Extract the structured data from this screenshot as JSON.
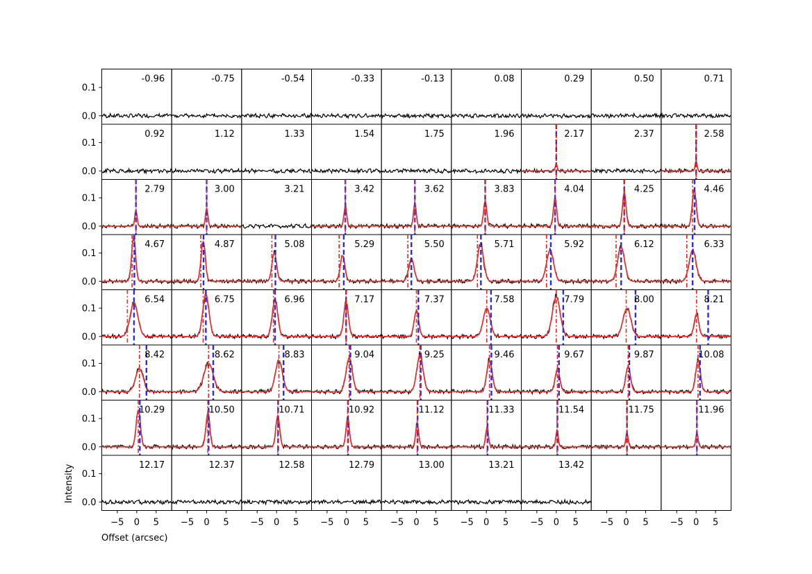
{
  "chart_data": {
    "type": "line",
    "grid": {
      "rows": 8,
      "cols": 9
    },
    "xlabel": "Offset (arcsec)",
    "ylabel": "Intensity",
    "xlim": [
      -9,
      9
    ],
    "ylim": [
      -0.03,
      0.165
    ],
    "xticks": [
      -5,
      0,
      5
    ],
    "xtick_labels": [
      "−5",
      "0",
      "5"
    ],
    "yticks": [
      0.0,
      0.1
    ],
    "ytick_labels": [
      "0.0",
      "0.1"
    ],
    "colors": {
      "data": "#000000",
      "fit": "#ff3333",
      "center": "#e8251f",
      "edge": "#2b2bdd"
    },
    "panels": [
      {
        "label": "-0.96"
      },
      {
        "label": "-0.75"
      },
      {
        "label": "-0.54"
      },
      {
        "label": "-0.33"
      },
      {
        "label": "-0.13"
      },
      {
        "label": "0.08"
      },
      {
        "label": "0.29"
      },
      {
        "label": "0.50"
      },
      {
        "label": "0.71"
      },
      {
        "label": "0.92"
      },
      {
        "label": "1.12"
      },
      {
        "label": "1.33"
      },
      {
        "label": "1.54"
      },
      {
        "label": "1.75"
      },
      {
        "label": "1.96"
      },
      {
        "label": "2.17",
        "amp": 0.025,
        "cen": 0.0,
        "sig": 0.25,
        "lines": [
          0.0,
          0.0
        ]
      },
      {
        "label": "2.37"
      },
      {
        "label": "2.58",
        "amp": 0.035,
        "cen": 0.0,
        "sig": 0.25,
        "lines": [
          0.0,
          0.0
        ]
      },
      {
        "label": "2.79",
        "amp": 0.055,
        "cen": -0.2,
        "sig": 0.3,
        "lines": [
          -0.2,
          -0.2
        ]
      },
      {
        "label": "3.00",
        "amp": 0.065,
        "cen": 0.0,
        "sig": 0.3,
        "lines": [
          0.0,
          0.0
        ]
      },
      {
        "label": "3.21"
      },
      {
        "label": "3.42",
        "amp": 0.07,
        "cen": -0.3,
        "sig": 0.35,
        "lines": [
          -0.3,
          -0.3
        ]
      },
      {
        "label": "3.62",
        "amp": 0.08,
        "cen": -0.4,
        "sig": 0.35,
        "lines": [
          -0.4,
          -0.4
        ]
      },
      {
        "label": "3.83",
        "amp": 0.09,
        "cen": -0.3,
        "sig": 0.4,
        "lines": [
          -0.3,
          -0.3
        ]
      },
      {
        "label": "4.04",
        "amp": 0.1,
        "cen": -0.3,
        "sig": 0.4,
        "lines": [
          -0.3,
          -0.3
        ]
      },
      {
        "label": "4.25",
        "amp": 0.12,
        "cen": -0.5,
        "sig": 0.45,
        "lines": [
          -0.5,
          -0.5
        ]
      },
      {
        "label": "4.46",
        "amp": 0.13,
        "cen": -0.5,
        "sig": 0.5,
        "lines": [
          -0.9,
          -0.4
        ]
      },
      {
        "label": "4.67",
        "amp": 0.16,
        "cen": -0.8,
        "sig": 0.5,
        "lines": [
          -1.2,
          -0.6
        ]
      },
      {
        "label": "4.87",
        "amp": 0.14,
        "cen": -0.9,
        "sig": 0.55,
        "lines": [
          -1.5,
          -0.8
        ]
      },
      {
        "label": "5.08",
        "amp": 0.1,
        "cen": -0.6,
        "sig": 0.6,
        "lines": [
          -1.2,
          -0.3
        ]
      },
      {
        "label": "5.29",
        "amp": 0.09,
        "cen": -1.0,
        "sig": 0.6,
        "lines": [
          -1.9,
          -0.7
        ]
      },
      {
        "label": "5.50",
        "amp": 0.08,
        "cen": -1.3,
        "sig": 0.7,
        "lines": [
          -2.2,
          -1.3
        ]
      },
      {
        "label": "5.71",
        "amp": 0.13,
        "cen": -1.5,
        "sig": 0.8,
        "lines": [
          -2.3,
          -1.4
        ]
      },
      {
        "label": "5.92",
        "amp": 0.11,
        "cen": -1.6,
        "sig": 0.9,
        "lines": [
          -2.5,
          -1.4
        ]
      },
      {
        "label": "6.12",
        "amp": 0.12,
        "cen": -1.3,
        "sig": 0.9,
        "lines": [
          -2.6,
          -1.3
        ]
      },
      {
        "label": "6.33",
        "amp": 0.11,
        "cen": -0.9,
        "sig": 0.9,
        "lines": [
          -2.4,
          -0.9
        ]
      },
      {
        "label": "6.54",
        "amp": 0.12,
        "cen": -0.7,
        "sig": 1.0,
        "lines": [
          -2.4,
          -0.7
        ]
      },
      {
        "label": "6.75",
        "amp": 0.15,
        "cen": -0.2,
        "sig": 0.8,
        "lines": [
          -0.9,
          -0.2
        ]
      },
      {
        "label": "6.96",
        "amp": 0.13,
        "cen": -0.4,
        "sig": 0.7,
        "lines": [
          -0.8,
          -0.4
        ]
      },
      {
        "label": "7.17",
        "amp": 0.12,
        "cen": -0.1,
        "sig": 0.6,
        "lines": [
          -0.1,
          -0.1
        ]
      },
      {
        "label": "7.37",
        "amp": 0.09,
        "cen": 0.0,
        "sig": 0.6,
        "lines": [
          0.0,
          0.5
        ]
      },
      {
        "label": "7.58",
        "amp": 0.1,
        "cen": 0.1,
        "sig": 0.9,
        "lines": [
          0.1,
          1.2
        ]
      },
      {
        "label": "7.79",
        "amp": 0.14,
        "cen": 0.0,
        "sig": 1.0,
        "lines": [
          0.0,
          1.8
        ]
      },
      {
        "label": "8.00",
        "amp": 0.1,
        "cen": 0.2,
        "sig": 1.0,
        "lines": [
          0.0,
          2.4
        ]
      },
      {
        "label": "8.21",
        "amp": 0.08,
        "cen": 0.1,
        "sig": 0.6,
        "lines": [
          0.1,
          3.1
        ]
      },
      {
        "label": "8.42",
        "amp": 0.08,
        "cen": 0.7,
        "sig": 1.0,
        "lines": [
          0.7,
          2.5
        ]
      },
      {
        "label": "8.62",
        "amp": 0.1,
        "cen": 0.5,
        "sig": 1.2,
        "lines": [
          0.5,
          1.7
        ]
      },
      {
        "label": "8.83",
        "amp": 0.11,
        "cen": 0.6,
        "sig": 0.9,
        "lines": [
          0.6,
          1.8
        ]
      },
      {
        "label": "9.04",
        "amp": 0.12,
        "cen": 0.7,
        "sig": 0.8,
        "lines": [
          0.7,
          1.0
        ]
      },
      {
        "label": "9.25",
        "amp": 0.13,
        "cen": 0.9,
        "sig": 0.8,
        "lines": [
          0.9,
          1.1
        ]
      },
      {
        "label": "9.46",
        "amp": 0.11,
        "cen": 0.8,
        "sig": 0.7,
        "lines": [
          0.8,
          1.3
        ]
      },
      {
        "label": "9.67",
        "amp": 0.08,
        "cen": 0.3,
        "sig": 0.6,
        "lines": [
          0.3,
          0.7
        ]
      },
      {
        "label": "9.87",
        "amp": 0.09,
        "cen": 0.5,
        "sig": 0.6,
        "lines": [
          0.5,
          0.8
        ]
      },
      {
        "label": "10.08",
        "amp": 0.11,
        "cen": 0.5,
        "sig": 0.6,
        "lines": [
          0.5,
          1.0
        ]
      },
      {
        "label": "10.29",
        "amp": 0.13,
        "cen": 0.4,
        "sig": 0.55,
        "lines": [
          0.4,
          0.8
        ]
      },
      {
        "label": "10.50",
        "amp": 0.12,
        "cen": 0.3,
        "sig": 0.5,
        "lines": [
          0.3,
          0.5
        ]
      },
      {
        "label": "10.71",
        "amp": 0.11,
        "cen": 0.3,
        "sig": 0.5,
        "lines": [
          0.3,
          0.4
        ]
      },
      {
        "label": "10.92",
        "amp": 0.1,
        "cen": 0.3,
        "sig": 0.45,
        "lines": [
          0.3,
          0.4
        ]
      },
      {
        "label": "11.12",
        "amp": 0.08,
        "cen": 0.2,
        "sig": 0.4,
        "lines": [
          0.2,
          0.3
        ]
      },
      {
        "label": "11.33",
        "amp": 0.07,
        "cen": 0.2,
        "sig": 0.35,
        "lines": [
          0.2,
          0.3
        ]
      },
      {
        "label": "11.54",
        "amp": 0.06,
        "cen": 0.2,
        "sig": 0.3,
        "lines": [
          0.2,
          0.3
        ]
      },
      {
        "label": "11.75",
        "amp": 0.05,
        "cen": 0.2,
        "sig": 0.3,
        "lines": [
          0.2,
          0.2
        ]
      },
      {
        "label": "11.96",
        "amp": 0.05,
        "cen": 0.2,
        "sig": 0.3,
        "lines": [
          0.2,
          0.2
        ]
      },
      {
        "label": "12.17"
      },
      {
        "label": "12.37"
      },
      {
        "label": "12.58"
      },
      {
        "label": "12.79"
      },
      {
        "label": "13.00"
      },
      {
        "label": "13.21"
      },
      {
        "label": "13.42"
      },
      {
        "label": ""
      },
      {
        "label": ""
      }
    ]
  }
}
